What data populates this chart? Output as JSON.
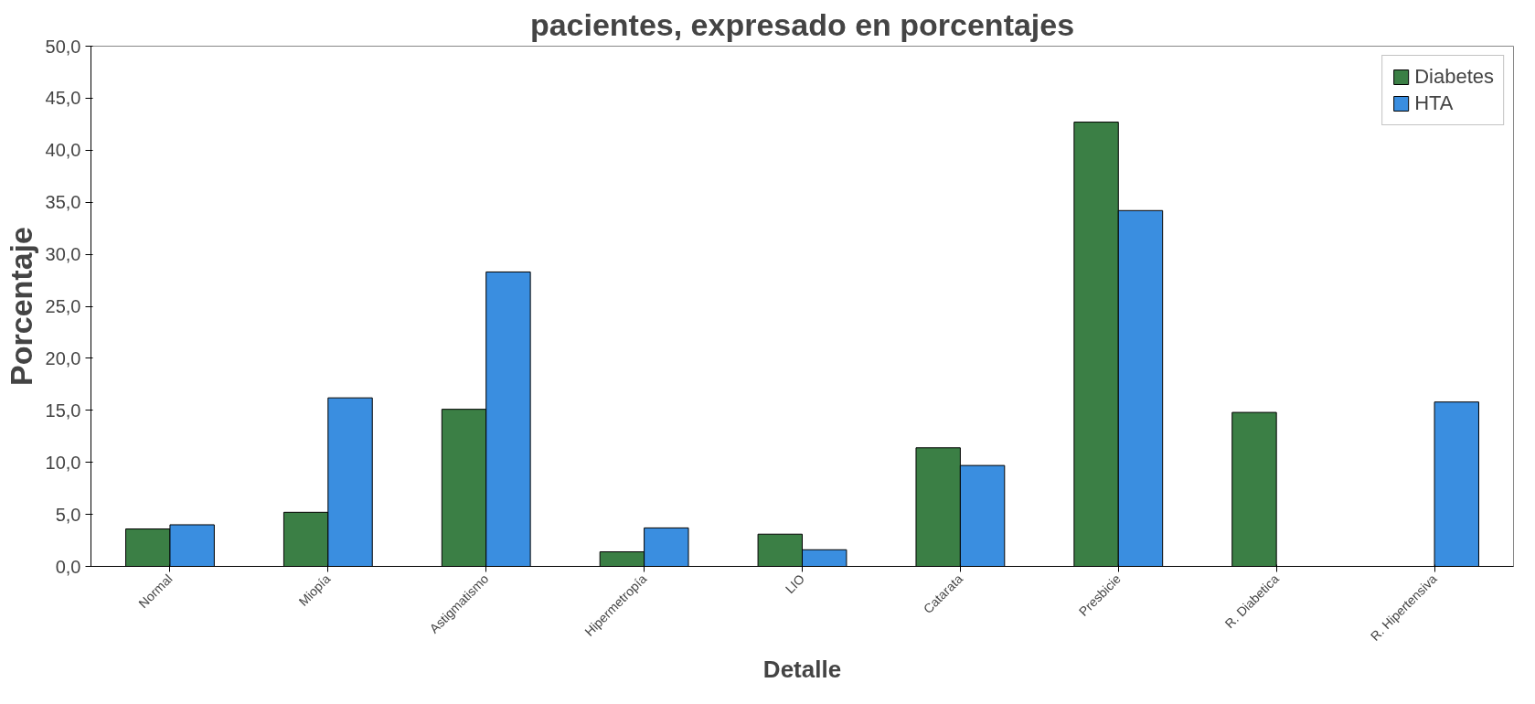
{
  "chart_data": {
    "type": "bar",
    "title": "pacientes, expresado en porcentajes",
    "xlabel": "Detalle",
    "ylabel": "Porcentaje",
    "categories": [
      "Normal",
      "Miopía",
      "Astigmatismo",
      "Hipermetropía",
      "LIO",
      "Catarata",
      "Presbicie",
      "R. Diabetica",
      "R. Hipertensiva"
    ],
    "series": [
      {
        "name": "Diabetes",
        "color": "#3b7f45",
        "values": [
          3.6,
          5.2,
          15.1,
          1.4,
          3.1,
          11.4,
          42.7,
          14.8,
          null
        ]
      },
      {
        "name": "HTA",
        "color": "#3a8ee0",
        "values": [
          4.0,
          16.2,
          28.3,
          3.7,
          1.6,
          9.7,
          34.2,
          null,
          15.8
        ]
      }
    ],
    "ylim": [
      0,
      50
    ],
    "yticks": [
      {
        "value": 0,
        "label": "0,0"
      },
      {
        "value": 5,
        "label": "5,0"
      },
      {
        "value": 10,
        "label": "10,0"
      },
      {
        "value": 15,
        "label": "15,0"
      },
      {
        "value": 20,
        "label": "20,0"
      },
      {
        "value": 25,
        "label": "25,0"
      },
      {
        "value": 30,
        "label": "30,0"
      },
      {
        "value": 35,
        "label": "35,0"
      },
      {
        "value": 40,
        "label": "40,0"
      },
      {
        "value": 45,
        "label": "45,0"
      },
      {
        "value": 50,
        "label": "50,0"
      }
    ],
    "grid": false,
    "legend": "top right"
  }
}
